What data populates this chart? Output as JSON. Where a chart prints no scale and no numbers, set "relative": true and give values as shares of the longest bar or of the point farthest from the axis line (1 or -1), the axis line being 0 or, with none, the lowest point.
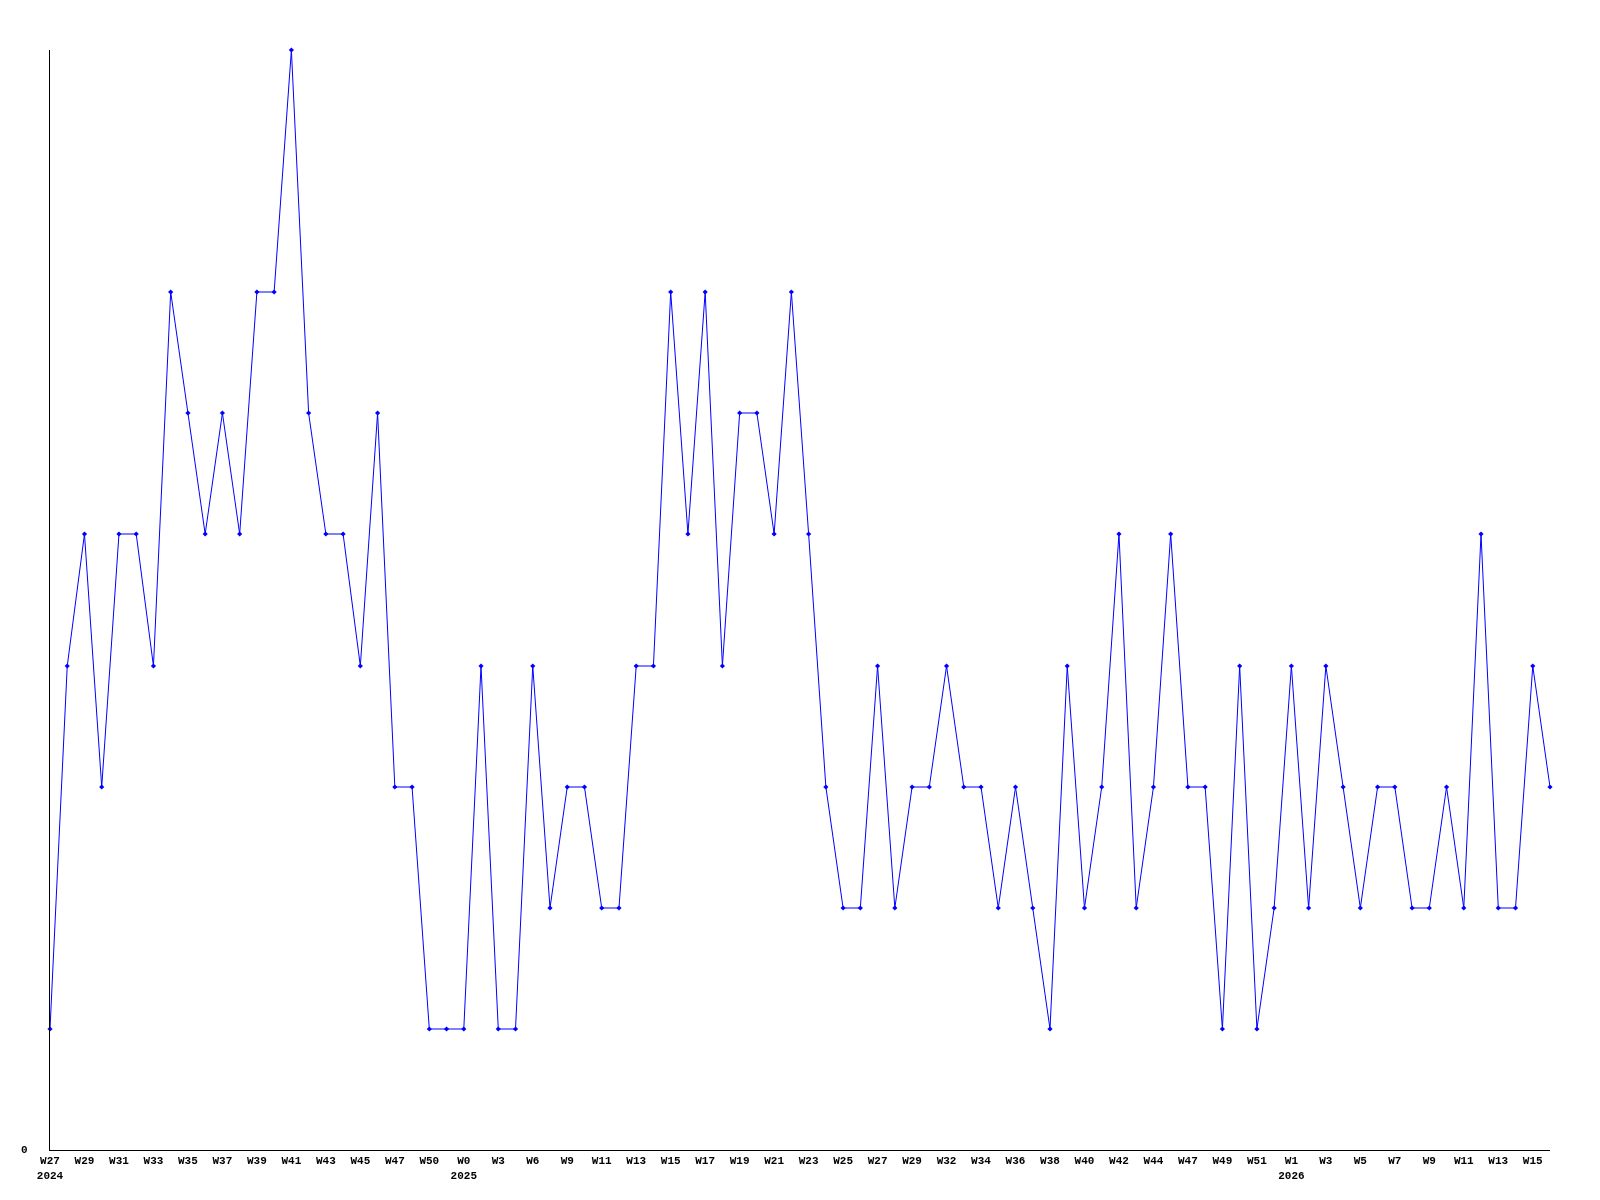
{
  "chart_data": {
    "type": "line",
    "relative": true,
    "color": "#0000ff",
    "marker": "diamond",
    "line_style": "solid",
    "grid": false,
    "legend": false,
    "categories": [
      "W27\n2024",
      null,
      "W29",
      null,
      "W31",
      null,
      "W33",
      null,
      "W35",
      null,
      "W37",
      null,
      "W39",
      null,
      "W41",
      null,
      "W43",
      null,
      "W45",
      null,
      "W47",
      null,
      "W50",
      null,
      "W0\n2025",
      null,
      "W3",
      null,
      "W6",
      null,
      "W9",
      null,
      "W11",
      null,
      "W13",
      null,
      "W15",
      null,
      "W17",
      null,
      "W19",
      null,
      "W21",
      null,
      "W23",
      null,
      "W25",
      null,
      "W27",
      null,
      "W29",
      null,
      "W32",
      null,
      "W34",
      null,
      "W36",
      null,
      "W38",
      null,
      "W40",
      null,
      "W42",
      null,
      "W44",
      null,
      "W47",
      null,
      "W49",
      null,
      "W51",
      null,
      "W1\n2026",
      null,
      "W3",
      null,
      "W5",
      null,
      "W7",
      null,
      "W9",
      null,
      "W11",
      null,
      "W13",
      null,
      "W15",
      null
    ],
    "values": [
      0.11,
      0.44,
      0.56,
      0.33,
      0.56,
      0.56,
      0.44,
      0.78,
      0.67,
      0.56,
      0.67,
      0.56,
      0.78,
      0.78,
      1,
      0.67,
      0.56,
      0.56,
      0.44,
      0.67,
      0.33,
      0.33,
      0.11,
      0.11,
      0.11,
      0.44,
      0.11,
      0.11,
      0.44,
      0.22,
      0.33,
      0.33,
      0.22,
      0.22,
      0.44,
      0.44,
      0.78,
      0.56,
      0.78,
      0.44,
      0.67,
      0.67,
      0.56,
      0.78,
      0.56,
      0.33,
      0.22,
      0.22,
      0.44,
      0.22,
      0.33,
      0.33,
      0.44,
      0.33,
      0.33,
      0.22,
      0.33,
      0.22,
      0.11,
      0.44,
      0.22,
      0.33,
      0.56,
      0.22,
      0.33,
      0.56,
      0.33,
      0.33,
      0.11,
      0.44,
      0.11,
      0.22,
      0.44,
      0.22,
      0.44,
      0.33,
      0.22,
      0.33,
      0.33,
      0.22,
      0.22,
      0.33,
      0.22,
      0.56,
      0.22,
      0.22,
      0.44,
      0.33
    ],
    "annotations": [
      "0"
    ]
  }
}
